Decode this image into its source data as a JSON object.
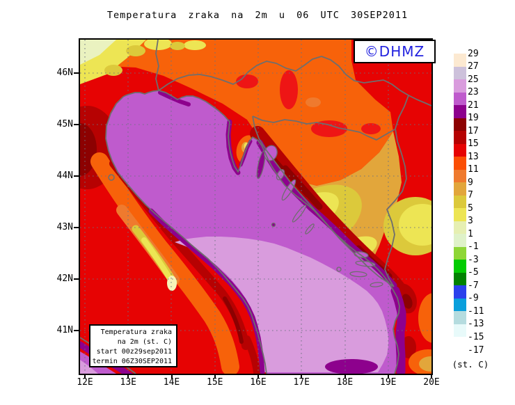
{
  "title": "Temperatura zraka na 2m u 06 UTC 30SEP2011",
  "watermark": {
    "text": "©DHMZ",
    "color": "#2121DF"
  },
  "info_box": {
    "lines": [
      "Temperatura zraka",
      "na 2m (st. C)",
      "start 00z29sep2011",
      "termin 06Z30SEP2011"
    ]
  },
  "axes": {
    "lat_labels": [
      "46N",
      "45N",
      "44N",
      "43N",
      "42N",
      "41N"
    ],
    "lon_labels": [
      "12E",
      "13E",
      "14E",
      "15E",
      "16E",
      "17E",
      "18E",
      "19E",
      "20E"
    ]
  },
  "colorbar": {
    "unit": "(st. C)",
    "tick_labels": [
      "29",
      "27",
      "25",
      "23",
      "21",
      "19",
      "17",
      "15",
      "13",
      "11",
      "9",
      "7",
      "5",
      "3",
      "1",
      "-1",
      "-3",
      "-5",
      "-7",
      "-9",
      "-11",
      "-13",
      "-15",
      "-17"
    ],
    "swatches": [
      {
        "range": "27 to 29",
        "color": "#FCE9D1"
      },
      {
        "range": "25 to 27",
        "color": "#CDC1DB"
      },
      {
        "range": "23 to 25",
        "color": "#D99CDD"
      },
      {
        "range": "21 to 23",
        "color": "#BF5BCD"
      },
      {
        "range": "19 to 21",
        "color": "#8D018D"
      },
      {
        "range": "17 to 19",
        "color": "#8C0101"
      },
      {
        "range": "15 to 17",
        "color": "#B60202"
      },
      {
        "range": "13 to 15",
        "color": "#E60303"
      },
      {
        "range": "11 to 13",
        "color": "#FB4E04"
      },
      {
        "range": "9 to 11",
        "color": "#EF7A2E"
      },
      {
        "range": "7 to 9",
        "color": "#E2A63B"
      },
      {
        "range": "5 to 7",
        "color": "#DCC93B"
      },
      {
        "range": "3 to 5",
        "color": "#EDE554"
      },
      {
        "range": "1 to 3",
        "color": "#E6EFB2"
      },
      {
        "range": "-1 to 1",
        "color": "#DFF2C9"
      },
      {
        "range": "-3 to -1",
        "color": "#8ED636"
      },
      {
        "range": "-5 to -3",
        "color": "#02CC02"
      },
      {
        "range": "-7 to -5",
        "color": "#018201"
      },
      {
        "range": "-9 to -7",
        "color": "#2B41EC"
      },
      {
        "range": "-11 to -9",
        "color": "#0A9FDC"
      },
      {
        "range": "-13 to -11",
        "color": "#B5DCDF"
      },
      {
        "range": "-15 to -13",
        "color": "#E8FAFA"
      },
      {
        "range": "-17 to -15",
        "color": "#FFFFFF"
      }
    ]
  }
}
